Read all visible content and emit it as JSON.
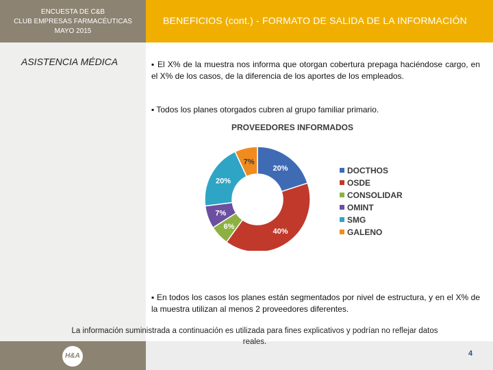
{
  "header": {
    "line1": "ENCUESTA DE C&B",
    "line2": "CLUB EMPRESAS FARMACÉUTICAS",
    "line3": "MAYO 2015",
    "title": "BENEFICIOS (cont.) - FORMATO DE SALIDA DE LA INFORMACIÓN"
  },
  "sidebar": {
    "label": "ASISTENCIA MÉDICA"
  },
  "body": {
    "para1": "▪ El X% de la muestra nos informa que otorgan cobertura prepaga haciéndose cargo, en el X% de los casos, de la diferencia de los aportes de los empleados.",
    "para2": "▪ Todos los planes otorgados cubren al grupo familiar primario.",
    "para3": "▪ En todos los casos los planes están segmentados por nivel de estructura, y en el X% de la muestra utilizan al menos 2 proveedores diferentes."
  },
  "chart_data": {
    "type": "pie",
    "title": "PROVEEDORES INFORMADOS",
    "categories": [
      "DOCTHOS",
      "OSDE",
      "CONSOLIDAR",
      "OMINT",
      "SMG",
      "GALENO"
    ],
    "values": [
      20,
      40,
      6,
      7,
      20,
      7
    ],
    "labels": [
      "20%",
      "40%",
      "6%",
      "7%",
      "20%",
      "7%"
    ],
    "colors": [
      "#3f6bb5",
      "#c0392b",
      "#8db141",
      "#6c4fa0",
      "#2ea5c4",
      "#f08c1f"
    ],
    "legend_position": "right"
  },
  "footer": {
    "disclaimer_l1": "La información suministrada a continuación es utilizada para fines explicativos y podrían no reflejar datos",
    "disclaimer_l2": "reales.",
    "logo": "H&A",
    "page": "4"
  }
}
